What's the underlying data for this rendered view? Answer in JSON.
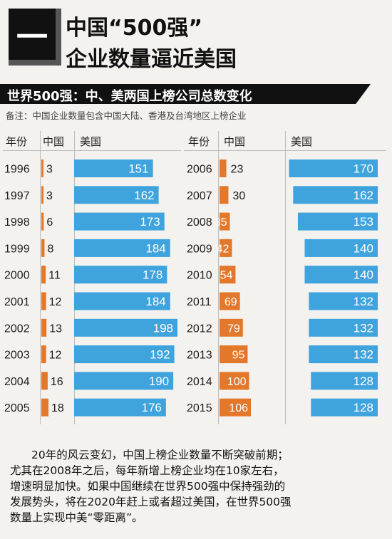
{
  "header": {
    "badge": "一",
    "title_line1": "中国“500强”",
    "title_line2": "企业数量逼近美国"
  },
  "subheader": "世界500强：中、美两国上榜公司总数变化",
  "note": "备注：中国企业数量包含中国大陆、香港及台湾地区上榜企业",
  "columns": {
    "year": "年份",
    "china": "中国",
    "usa": "美国"
  },
  "colors": {
    "china": "#e3782b",
    "usa": "#3fa3de"
  },
  "chart_data": {
    "type": "bar",
    "title": "世界500强：中、美两国上榜公司总数变化",
    "categories": [
      "1996",
      "1997",
      "1998",
      "1999",
      "2000",
      "2001",
      "2002",
      "2003",
      "2004",
      "2005",
      "2006",
      "2007",
      "2008",
      "2009",
      "2010",
      "2011",
      "2012",
      "2013",
      "2014",
      "2015"
    ],
    "series": [
      {
        "name": "中国",
        "values": [
          3,
          3,
          6,
          8,
          11,
          12,
          13,
          12,
          16,
          18,
          23,
          30,
          35,
          42,
          54,
          69,
          79,
          95,
          100,
          106
        ]
      },
      {
        "name": "美国",
        "values": [
          151,
          162,
          173,
          184,
          178,
          184,
          198,
          192,
          190,
          176,
          170,
          162,
          153,
          140,
          140,
          132,
          132,
          132,
          128,
          128
        ]
      }
    ]
  },
  "body_text": [
    "20年的风云变幻，中国上榜企业数量不断突破前期；",
    "尤其在2008年之后，每年新增上榜企业均在10家左右，",
    "增速明显加快。如果中国继续在世界500强中保持强劲的",
    "发展势头，将在2020年赶上或者超过美国，在世界500强",
    "数量上实现中美“零距离”。"
  ]
}
